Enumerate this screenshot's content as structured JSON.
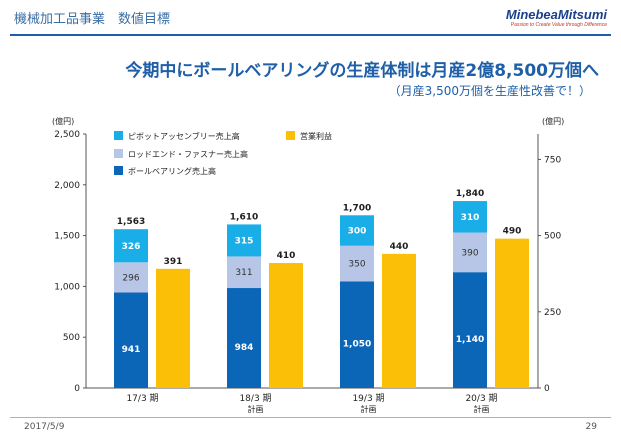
{
  "header": {
    "title": "機械加工品事業　数値目標",
    "logo": "MinebeaMitsumi",
    "logo_tagline": "Passion to Create Value through Difference"
  },
  "headline": "今期中にボールベアリングの生産体制は月産2億8,500万個へ",
  "subline": "（月産3,500万個を生産性改善で！）",
  "footer": {
    "date": "2017/5/9",
    "page": "29"
  },
  "chart_data": {
    "type": "bar",
    "units_left": "(億円)",
    "units_right": "(億円)",
    "ylim_left": [
      0,
      2500
    ],
    "yticks_left": [
      "0",
      "500",
      "1,000",
      "1,500",
      "2,000",
      "2,500"
    ],
    "ylim_right": [
      0,
      833.33
    ],
    "yticks_right": [
      "0",
      "250",
      "500",
      "750"
    ],
    "categories": [
      {
        "label": "17/3 期",
        "sub": ""
      },
      {
        "label": "18/3 期",
        "sub": "計画"
      },
      {
        "label": "19/3 期",
        "sub": "計画"
      },
      {
        "label": "20/3 期",
        "sub": "計画"
      }
    ],
    "stack_series": [
      {
        "name": "ボールベアリング売上高",
        "color": "#0b66b8",
        "values": [
          941,
          984,
          1050,
          1140
        ],
        "labels": [
          "941",
          "984",
          "1,050",
          "1,140"
        ]
      },
      {
        "name": "ロッドエンド・ファスナー売上高",
        "color": "#b7c6e6",
        "values": [
          296,
          311,
          350,
          390
        ],
        "labels": [
          "296",
          "311",
          "350",
          "390"
        ]
      },
      {
        "name": "ピボットアッセンブリー売上高",
        "color": "#19aee8",
        "values": [
          326,
          315,
          300,
          310
        ],
        "labels": [
          "326",
          "315",
          "300",
          "310"
        ]
      }
    ],
    "stack_totals": [
      "1,563",
      "1,610",
      "1,700",
      "1,840"
    ],
    "side_series": {
      "name": "営業利益",
      "color": "#fbbf08",
      "axis": "right",
      "values": [
        391,
        410,
        440,
        490
      ],
      "labels": [
        "391",
        "410",
        "440",
        "490"
      ]
    },
    "legend": [
      {
        "name": "ピボットアッセンブリー売上高",
        "color": "#19aee8"
      },
      {
        "name": "営業利益",
        "color": "#fbbf08"
      },
      {
        "name": "ロッドエンド・ファスナー売上高",
        "color": "#b7c6e6"
      },
      {
        "name": "ボールベアリング売上高",
        "color": "#0b66b8"
      }
    ]
  }
}
